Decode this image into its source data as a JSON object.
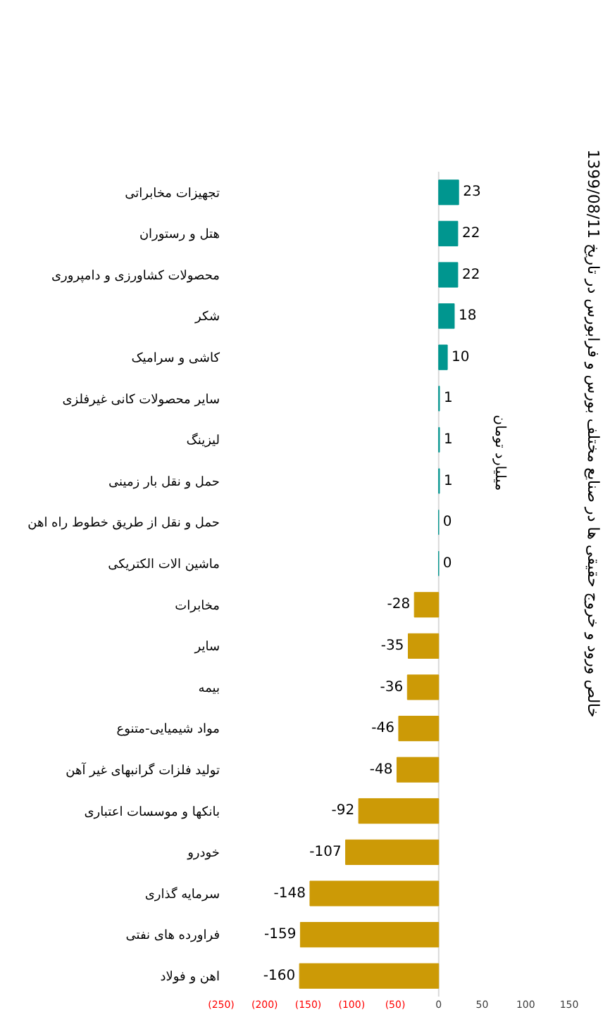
{
  "chart_data": {
    "type": "bar",
    "orientation": "horizontal",
    "title": "خالص ورود و خروج حقیقی ها در صنایع مختلف بورس و فرابورس در تاریخ 1399/08/11",
    "annotations": [
      "میلیارد تومان"
    ],
    "ref_lines": [
      {
        "axis": "x",
        "value": 0,
        "color": "#d9d9d9"
      }
    ],
    "categories": [
      "تجهیزات مخابراتی",
      "هتل و رستوران",
      "محصولات کشاورزی و دامپروری",
      "شکر",
      "کاشی و سرامیک",
      "سایر محصولات کانی غیرفلزی",
      "لیزینگ",
      "حمل و نقل بار زمینی",
      "حمل و نقل از طریق خطوط راه اهن",
      "ماشین الات الکتریکی",
      "مخابرات",
      "سایر",
      "بیمه",
      "مواد شیمیایی-متنوع",
      "تولید فلزات گرانبهای غیر آهن",
      "بانکها و موسسات اعتباری",
      "خودرو",
      "سرمایه گذاری",
      "فراورده های نفتی",
      "اهن و فولاد"
    ],
    "values": [
      23,
      22,
      22,
      18,
      10,
      1,
      1,
      1,
      0,
      0,
      -28,
      -35,
      -36,
      -46,
      -48,
      -92,
      -107,
      -148,
      -159,
      -160
    ],
    "colors": [
      "#00968f",
      "#00968f",
      "#00968f",
      "#00968f",
      "#00968f",
      "#00968f",
      "#00968f",
      "#00968f",
      "#00968f",
      "#00968f",
      "#cc9a06",
      "#cc9a06",
      "#cc9a06",
      "#cc9a06",
      "#cc9a06",
      "#cc9a06",
      "#cc9a06",
      "#cc9a06",
      "#cc9a06",
      "#cc9a06"
    ],
    "xlim": [
      -250,
      150
    ],
    "xticks": [
      {
        "value": -250,
        "label": "(250)"
      },
      {
        "value": -200,
        "label": "(200)"
      },
      {
        "value": -150,
        "label": "(150)"
      },
      {
        "value": -100,
        "label": "(100)"
      },
      {
        "value": -50,
        "label": "(50)"
      },
      0,
      50,
      100,
      150
    ],
    "data_labels": true,
    "grid": false,
    "legend": false
  }
}
